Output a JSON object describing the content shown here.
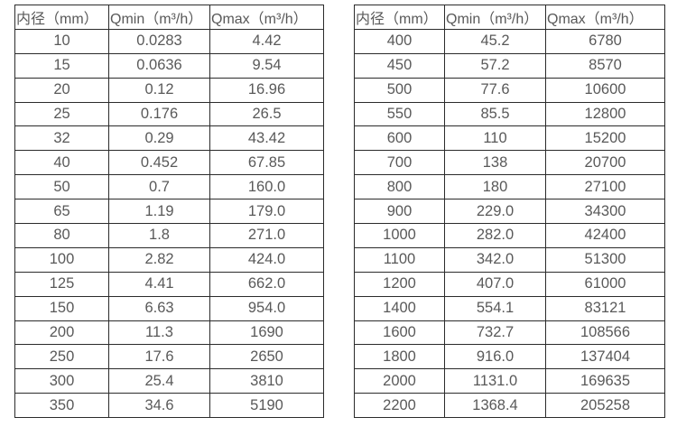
{
  "colors": {
    "background": "#ffffff",
    "table_border": "#2b2b2b",
    "text": "#595959"
  },
  "tables": [
    {
      "id": "flow-table-small-diameters",
      "headers": [
        "内径（mm）",
        "Qmin（m³/h）",
        "Qmax（m³/h）"
      ],
      "rows": [
        [
          "10",
          "0.0283",
          "4.42"
        ],
        [
          "15",
          "0.0636",
          "9.54"
        ],
        [
          "20",
          "0.12",
          "16.96"
        ],
        [
          "25",
          "0.176",
          "26.5"
        ],
        [
          "32",
          "0.29",
          "43.42"
        ],
        [
          "40",
          "0.452",
          "67.85"
        ],
        [
          "50",
          "0.7",
          "160.0"
        ],
        [
          "65",
          "1.19",
          "179.0"
        ],
        [
          "80",
          "1.8",
          "271.0"
        ],
        [
          "100",
          "2.82",
          "424.0"
        ],
        [
          "125",
          "4.41",
          "662.0"
        ],
        [
          "150",
          "6.63",
          "954.0"
        ],
        [
          "200",
          "11.3",
          "1690"
        ],
        [
          "250",
          "17.6",
          "2650"
        ],
        [
          "300",
          "25.4",
          "3810"
        ],
        [
          "350",
          "34.6",
          "5190"
        ]
      ]
    },
    {
      "id": "flow-table-large-diameters",
      "headers": [
        "内径（mm）",
        "Qmin（m³/h）",
        "Qmax（m³/h）"
      ],
      "rows": [
        [
          "400",
          "45.2",
          "6780"
        ],
        [
          "450",
          "57.2",
          "8570"
        ],
        [
          "500",
          "77.6",
          "10600"
        ],
        [
          "550",
          "85.5",
          "12800"
        ],
        [
          "600",
          "110",
          "15200"
        ],
        [
          "700",
          "138",
          "20700"
        ],
        [
          "800",
          "180",
          "27100"
        ],
        [
          "900",
          "229.0",
          "34300"
        ],
        [
          "1000",
          "282.0",
          "42400"
        ],
        [
          "1100",
          "342.0",
          "51300"
        ],
        [
          "1200",
          "407.0",
          "61000"
        ],
        [
          "1400",
          "554.1",
          "83121"
        ],
        [
          "1600",
          "732.7",
          "108566"
        ],
        [
          "1800",
          "916.0",
          "137404"
        ],
        [
          "2000",
          "1131.0",
          "169635"
        ],
        [
          "2200",
          "1368.4",
          "205258"
        ]
      ]
    }
  ]
}
